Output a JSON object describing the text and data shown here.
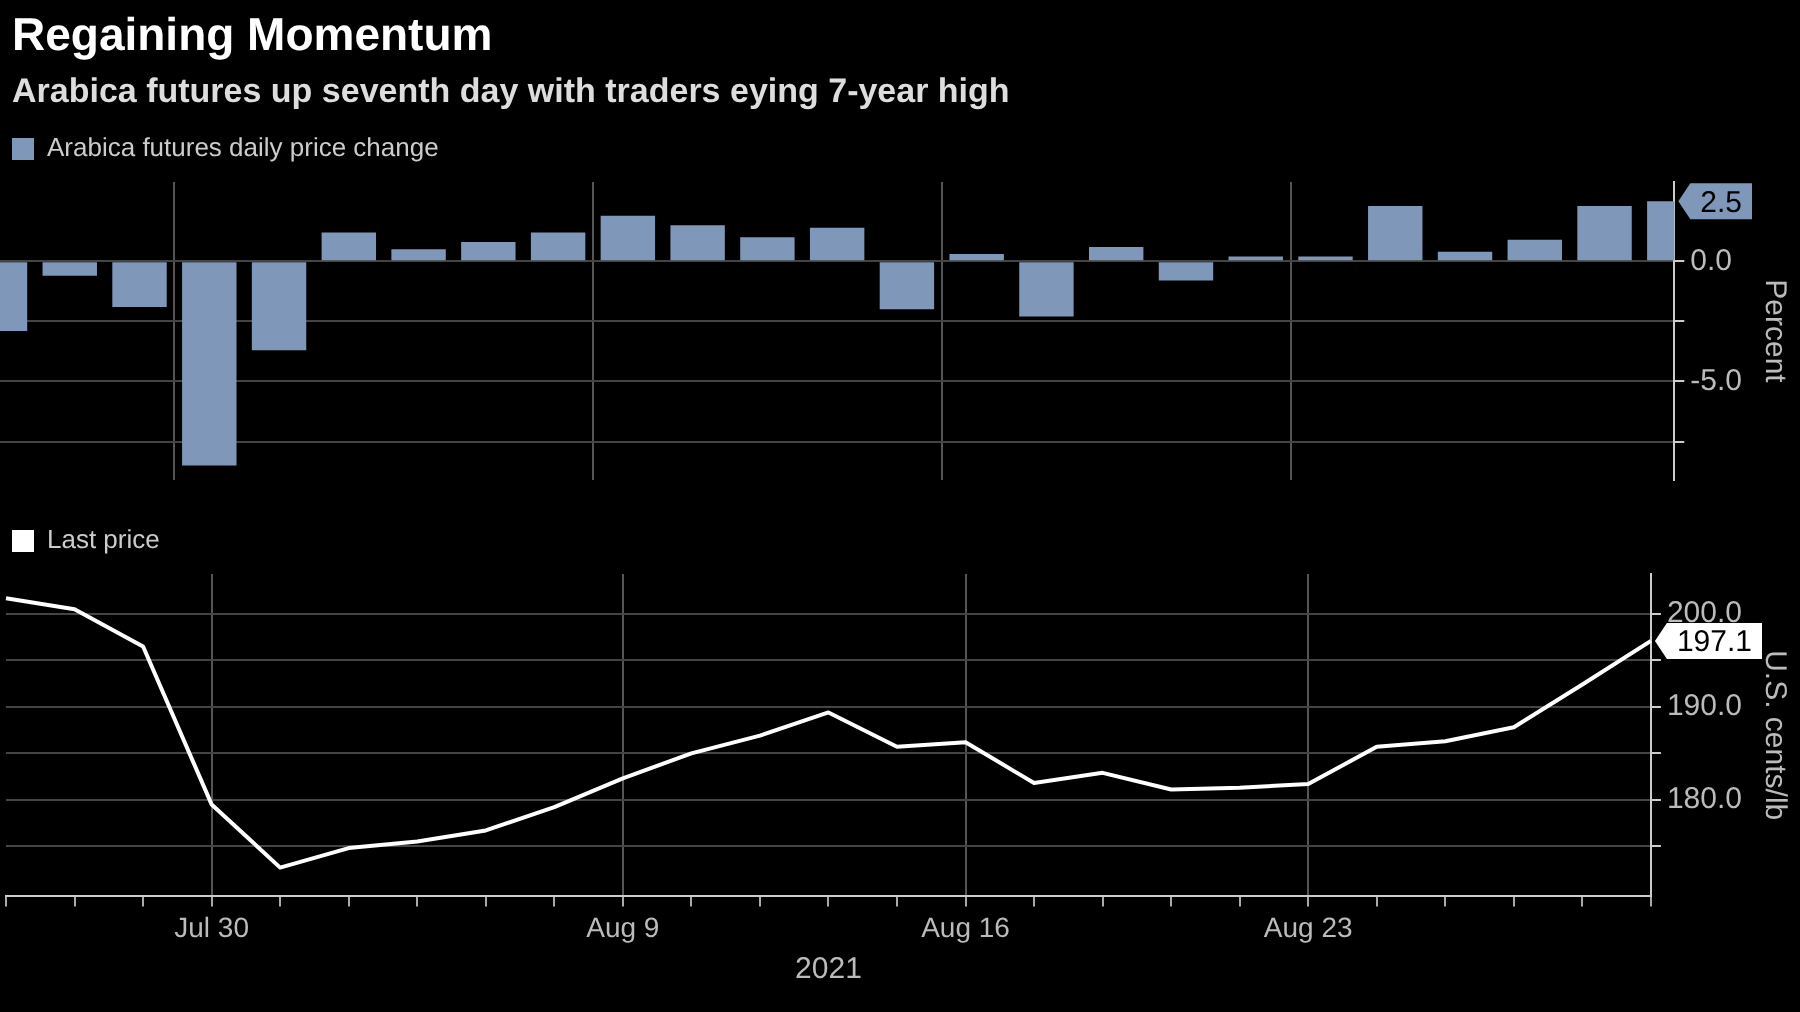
{
  "chart_data": [
    {
      "type": "bar",
      "title": "Regaining Momentum",
      "subtitle": "Arabica futures up seventh day with traders eying 7-year high",
      "ylabel": "Percent",
      "categories": [
        null,
        null,
        null,
        null,
        null,
        null,
        null,
        null,
        null,
        null,
        null,
        null,
        null,
        null,
        null,
        null,
        null,
        null,
        null,
        null,
        null,
        null,
        null,
        null,
        null
      ],
      "series": [
        {
          "name": "Arabica futures daily price change",
          "color": "#7f97b8",
          "values": [
            -2.9,
            -0.6,
            -1.9,
            -8.5,
            -3.7,
            1.2,
            0.5,
            0.8,
            1.2,
            1.9,
            1.5,
            1.0,
            1.4,
            -2.0,
            0.3,
            -2.3,
            0.6,
            -0.8,
            0.2,
            0.2,
            2.3,
            0.4,
            0.9,
            2.3,
            2.5
          ]
        }
      ],
      "ylim": [
        -9.1,
        3.3
      ],
      "yticks": [
        {
          "value": -7.5,
          "label": null
        },
        {
          "value": -5,
          "label": "-5.0"
        },
        {
          "value": -2.5,
          "label": null
        },
        {
          "value": 0,
          "label": "0.0"
        }
      ],
      "annotations": [
        "2.5"
      ],
      "grid": true,
      "legend": "top left",
      "tick_labels": "y"
    },
    {
      "type": "line",
      "xlabel": "2021",
      "ylabel": "U.S. cents/lb",
      "categories": [
        null,
        null,
        null,
        "Jul 30",
        null,
        null,
        null,
        null,
        null,
        "Aug 9",
        null,
        null,
        null,
        null,
        "Aug 16",
        null,
        null,
        null,
        null,
        "Aug 23",
        null,
        null,
        null,
        null,
        null
      ],
      "series": [
        {
          "name": "Last price",
          "color": "#ffffff",
          "values": [
            201.7,
            200.5,
            196.5,
            179.5,
            172.7,
            174.8,
            175.5,
            176.7,
            179.2,
            182.3,
            185.0,
            186.9,
            189.4,
            185.7,
            186.2,
            181.8,
            182.9,
            181.1,
            181.3,
            181.7,
            185.7,
            186.3,
            187.8,
            192.4,
            197.1
          ]
        }
      ],
      "ylim": [
        169.6,
        204.3
      ],
      "yticks": [
        {
          "value": 175,
          "label": null
        },
        {
          "value": 180,
          "label": "180.0"
        },
        {
          "value": 185,
          "label": null
        },
        {
          "value": 190,
          "label": "190.0"
        },
        {
          "value": 195,
          "label": null
        },
        {
          "value": 200,
          "label": "200.0"
        }
      ],
      "annotations": [
        "197.1"
      ],
      "grid": true,
      "legend": "top left",
      "marker": "none"
    }
  ]
}
